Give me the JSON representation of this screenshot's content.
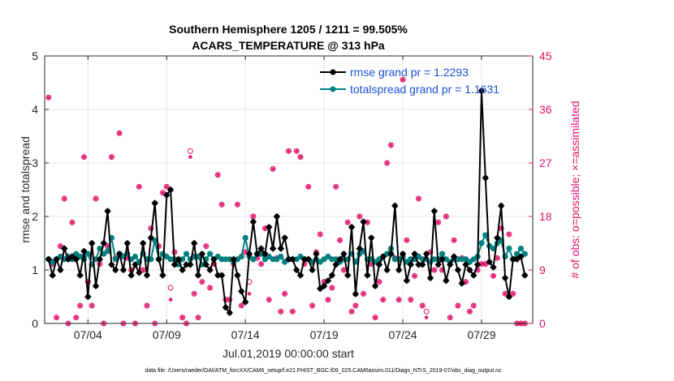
{
  "chart_data": {
    "type": "line",
    "title": "Southern Hemisphere 1205 / 1211 = 99.505%",
    "subtitle": "ACARS_TEMPERATURE @ 313 hPa",
    "xlabel": "Jul.01,2019 00:00:00 start",
    "ylabel_left": "rmse and totalspread",
    "ylabel_right": "# of obs: o=possible; ×=assimilated",
    "footer": "data file: /Users/raeder/DAI/ATM_forcXX/CAM6_setup/f.e21.FHIST_BGC.f09_025.CAM6assim.011/Diags_NTrS_2019-07/obs_diag_output.nc",
    "xlim": [
      1.25,
      32.25
    ],
    "ylim_left": [
      0,
      5
    ],
    "ylim_right": [
      0,
      45
    ],
    "grid": true,
    "legend_position": "top-right",
    "x_ticks": [
      4,
      9,
      14,
      19,
      24,
      29
    ],
    "x_tick_labels": [
      "07/04",
      "07/09",
      "07/14",
      "07/19",
      "07/24",
      "07/29"
    ],
    "y_ticks_left": [
      "0",
      "1",
      "2",
      "3",
      "4",
      "5"
    ],
    "y_ticks_right": [
      "0",
      "9",
      "18",
      "27",
      "36",
      "45"
    ],
    "colors": {
      "rmse": "#000000",
      "spread": "#008080",
      "obs": "#e0156b",
      "legend_text": "#1a4fd6",
      "grid": "#e6e6e6",
      "axis": "#262626"
    },
    "series": [
      {
        "name": "rmse grand pr = 1.2293",
        "axis": "left",
        "x": [
          1.5,
          1.75,
          2.0,
          2.25,
          2.5,
          2.75,
          3.0,
          3.25,
          3.5,
          3.75,
          4.0,
          4.25,
          4.5,
          4.75,
          5.0,
          5.25,
          5.5,
          5.75,
          6.0,
          6.25,
          6.5,
          6.75,
          7.0,
          7.25,
          7.5,
          7.75,
          8.0,
          8.25,
          8.5,
          8.75,
          9.0,
          9.25,
          9.5,
          9.75,
          10.0,
          10.25,
          10.5,
          10.75,
          11.0,
          11.25,
          11.5,
          11.75,
          12.0,
          12.25,
          12.5,
          12.75,
          13.0,
          13.25,
          13.5,
          13.75,
          14.0,
          14.25,
          14.5,
          14.75,
          15.0,
          15.25,
          15.5,
          15.75,
          16.0,
          16.25,
          16.5,
          16.75,
          17.0,
          17.25,
          17.5,
          17.75,
          18.0,
          18.25,
          18.5,
          18.75,
          19.0,
          19.25,
          19.5,
          19.75,
          20.0,
          20.25,
          20.5,
          20.75,
          21.0,
          21.25,
          21.5,
          21.75,
          22.0,
          22.25,
          22.5,
          22.75,
          23.0,
          23.25,
          23.5,
          23.75,
          24.0,
          24.25,
          24.5,
          24.75,
          25.0,
          25.25,
          25.5,
          25.75,
          26.0,
          26.25,
          26.5,
          26.75,
          27.0,
          27.25,
          27.5,
          27.75,
          28.0,
          28.25,
          28.5,
          28.75,
          29.0,
          29.25,
          29.5,
          29.75,
          30.0,
          30.25,
          30.5,
          30.75,
          31.0,
          31.25,
          31.5,
          31.75
        ],
        "values": [
          1.2,
          0.9,
          1.2,
          1.0,
          1.4,
          1.2,
          1.25,
          1.2,
          0.9,
          1.35,
          0.5,
          1.5,
          0.7,
          1.2,
          1.5,
          2.1,
          1.1,
          1.0,
          1.3,
          1.0,
          1.5,
          0.9,
          1.1,
          0.95,
          1.5,
          0.9,
          1.6,
          2.25,
          1.2,
          0.9,
          2.4,
          2.5,
          1.1,
          1.2,
          1.0,
          1.1,
          1.1,
          1.5,
          0.9,
          1.3,
          1.1,
          1.0,
          1.2,
          0.9,
          0.9,
          0.3,
          0.2,
          1.2,
          0.9,
          0.6,
          0.4,
          1.3,
          1.9,
          1.3,
          1.4,
          1.3,
          1.8,
          1.4,
          2.0,
          1.4,
          1.6,
          1.2,
          1.2,
          1.0,
          0.9,
          1.2,
          1.2,
          1.0,
          1.3,
          0.65,
          0.7,
          0.8,
          0.9,
          1.1,
          1.2,
          1.3,
          0.9,
          1.8,
          0.55,
          1.4,
          1.9,
          0.9,
          1.6,
          0.7,
          1.1,
          1.25,
          1.0,
          1.3,
          2.2,
          1.0,
          1.3,
          0.8,
          1.1,
          1.3,
          1.1,
          1.1,
          1.3,
          0.85,
          2.1,
          1.1,
          1.2,
          0.8,
          1.1,
          1.25,
          1.0,
          0.75,
          1.1,
          1.0,
          0.9,
          1.1,
          4.35,
          2.72,
          1.15,
          1.05,
          1.6,
          2.2,
          0.85,
          0.5,
          1.2,
          1.2,
          1.25,
          0.9
        ],
        "color": "#000000"
      },
      {
        "name": "totalspread grand pr = 1.1631",
        "axis": "left",
        "x": [
          1.5,
          1.75,
          2.0,
          2.25,
          2.5,
          2.75,
          3.0,
          3.25,
          3.5,
          3.75,
          4.0,
          4.25,
          4.5,
          4.75,
          5.0,
          5.25,
          5.5,
          5.75,
          6.0,
          6.25,
          6.5,
          6.75,
          7.0,
          7.25,
          7.5,
          7.75,
          8.0,
          8.25,
          8.5,
          8.75,
          9.0,
          9.25,
          9.5,
          9.75,
          10.0,
          10.25,
          10.5,
          10.75,
          11.0,
          11.25,
          11.5,
          11.75,
          12.0,
          12.25,
          12.5,
          12.75,
          13.0,
          13.25,
          13.5,
          13.75,
          14.0,
          14.25,
          14.5,
          14.75,
          15.0,
          15.25,
          15.5,
          15.75,
          16.0,
          16.25,
          16.5,
          16.75,
          17.0,
          17.25,
          17.5,
          17.75,
          18.0,
          18.25,
          18.5,
          18.75,
          19.0,
          19.25,
          19.5,
          19.75,
          20.0,
          20.25,
          20.5,
          20.75,
          21.0,
          21.25,
          21.5,
          21.75,
          22.0,
          22.25,
          22.5,
          22.75,
          23.0,
          23.25,
          23.5,
          23.75,
          24.0,
          24.25,
          24.5,
          24.75,
          25.0,
          25.25,
          25.5,
          25.75,
          26.0,
          26.25,
          26.5,
          26.75,
          27.0,
          27.25,
          27.5,
          27.75,
          28.0,
          28.25,
          28.5,
          28.75,
          29.0,
          29.25,
          29.5,
          29.75,
          30.0,
          30.25,
          30.5,
          30.75,
          31.0,
          31.25,
          31.5,
          31.75
        ],
        "values": [
          1.2,
          1.15,
          1.2,
          1.25,
          1.2,
          1.25,
          1.2,
          1.3,
          1.25,
          1.2,
          1.3,
          1.1,
          1.2,
          1.4,
          1.3,
          1.35,
          1.6,
          1.2,
          1.3,
          1.25,
          1.3,
          1.2,
          1.25,
          1.15,
          1.3,
          1.2,
          1.2,
          1.55,
          1.2,
          1.3,
          1.25,
          1.2,
          1.2,
          1.1,
          1.2,
          1.3,
          1.2,
          1.25,
          1.25,
          1.1,
          1.2,
          1.3,
          1.2,
          1.25,
          1.2,
          1.2,
          1.2,
          1.15,
          1.2,
          1.25,
          1.6,
          1.25,
          1.2,
          1.3,
          1.3,
          1.2,
          1.25,
          1.2,
          1.2,
          1.25,
          1.15,
          1.2,
          1.2,
          1.2,
          1.25,
          1.2,
          1.2,
          1.15,
          1.2,
          1.15,
          1.2,
          1.25,
          1.2,
          1.2,
          1.15,
          1.2,
          1.2,
          1.3,
          1.15,
          1.3,
          1.35,
          1.2,
          1.2,
          1.15,
          1.2,
          1.25,
          1.3,
          1.4,
          1.2,
          1.2,
          1.25,
          1.15,
          1.2,
          1.2,
          1.25,
          1.2,
          1.2,
          1.15,
          1.2,
          1.2,
          1.3,
          1.2,
          1.15,
          1.2,
          1.2,
          1.2,
          1.2,
          1.15,
          1.2,
          1.25,
          1.5,
          1.65,
          1.45,
          1.4,
          1.5,
          1.55,
          1.25,
          1.4,
          1.2,
          1.3,
          1.4,
          1.3
        ],
        "color": "#008080"
      }
    ],
    "obs_possible": {
      "axis": "right",
      "x": [
        1.5,
        1.75,
        2.0,
        2.25,
        2.5,
        2.75,
        3.0,
        3.25,
        3.5,
        3.75,
        4.0,
        4.25,
        4.5,
        4.75,
        5.0,
        5.25,
        5.5,
        5.75,
        6.0,
        6.25,
        6.5,
        6.75,
        7.0,
        7.25,
        7.5,
        7.75,
        8.0,
        8.25,
        8.5,
        8.75,
        9.0,
        9.25,
        9.5,
        9.75,
        10.0,
        10.25,
        10.5,
        10.75,
        11.0,
        11.25,
        11.5,
        11.75,
        12.0,
        12.25,
        12.5,
        12.75,
        13.0,
        13.25,
        13.5,
        13.75,
        14.0,
        14.25,
        14.5,
        14.75,
        15.0,
        15.25,
        15.5,
        15.75,
        16.0,
        16.25,
        16.5,
        16.75,
        17.0,
        17.25,
        17.5,
        17.75,
        18.0,
        18.25,
        18.5,
        18.75,
        19.0,
        19.25,
        19.5,
        19.75,
        20.0,
        20.25,
        20.5,
        20.75,
        21.0,
        21.25,
        21.5,
        21.75,
        22.0,
        22.25,
        22.5,
        22.75,
        23.0,
        23.25,
        23.5,
        23.75,
        24.0,
        24.25,
        24.5,
        24.75,
        25.0,
        25.25,
        25.5,
        25.75,
        26.0,
        26.25,
        26.5,
        26.75,
        27.0,
        27.25,
        27.5,
        27.75,
        28.0,
        28.25,
        28.5,
        28.75,
        29.0,
        29.25,
        29.5,
        29.75,
        30.0,
        30.25,
        30.5,
        30.75,
        31.0,
        31.25,
        31.5,
        31.75
      ],
      "values": [
        38,
        10,
        1,
        13,
        21,
        0,
        17,
        1,
        3,
        28,
        7,
        3,
        21,
        10,
        0,
        13,
        28,
        11,
        32,
        0,
        11,
        9,
        0,
        23,
        9,
        3,
        16,
        0,
        13,
        22,
        23,
        6,
        12,
        10,
        1,
        0,
        29,
        5,
        1,
        7,
        13,
        6,
        10,
        25,
        20,
        4,
        4,
        10,
        20,
        3,
        12,
        7,
        18,
        11,
        10,
        16,
        4,
        26,
        11,
        2,
        5,
        29,
        2,
        29,
        28,
        10,
        23,
        3,
        12,
        15,
        7,
        4,
        6,
        23,
        14,
        9,
        17,
        2,
        3,
        18,
        5,
        17,
        10,
        1,
        7,
        4,
        27,
        30,
        11,
        4,
        41,
        14,
        4,
        8,
        21,
        3,
        2,
        12,
        9,
        17,
        9,
        18,
        1,
        14,
        3,
        11,
        7,
        2,
        3,
        9,
        10,
        10,
        13,
        8,
        11,
        16,
        5,
        15,
        5,
        0,
        0,
        0
      ]
    },
    "obs_assimilated": {
      "axis": "right",
      "x": [
        1.5,
        1.75,
        2.0,
        2.25,
        2.5,
        2.75,
        3.0,
        3.25,
        3.5,
        3.75,
        4.0,
        4.25,
        4.5,
        4.75,
        5.0,
        5.25,
        5.5,
        5.75,
        6.0,
        6.25,
        6.5,
        6.75,
        7.0,
        7.25,
        7.5,
        7.75,
        8.0,
        8.25,
        8.5,
        8.75,
        9.0,
        9.25,
        9.5,
        9.75,
        10.0,
        10.25,
        10.5,
        10.75,
        11.0,
        11.25,
        11.5,
        11.75,
        12.0,
        12.25,
        12.5,
        12.75,
        13.0,
        13.25,
        13.5,
        13.75,
        14.0,
        14.25,
        14.5,
        14.75,
        15.0,
        15.25,
        15.5,
        15.75,
        16.0,
        16.25,
        16.5,
        16.75,
        17.0,
        17.25,
        17.5,
        17.75,
        18.0,
        18.25,
        18.5,
        18.75,
        19.0,
        19.25,
        19.5,
        19.75,
        20.0,
        20.25,
        20.5,
        20.75,
        21.0,
        21.25,
        21.5,
        21.75,
        22.0,
        22.25,
        22.5,
        22.75,
        23.0,
        23.25,
        23.5,
        23.75,
        24.0,
        24.25,
        24.5,
        24.75,
        25.0,
        25.25,
        25.5,
        25.75,
        26.0,
        26.25,
        26.5,
        26.75,
        27.0,
        27.25,
        27.5,
        27.75,
        28.0,
        28.25,
        28.5,
        28.75,
        29.0,
        29.25,
        29.5,
        29.75,
        30.0,
        30.25,
        30.5,
        30.75,
        31.0,
        31.25,
        31.5,
        31.75
      ],
      "values": [
        38,
        10,
        1,
        13,
        21,
        0,
        17,
        1,
        3,
        28,
        7,
        3,
        21,
        10,
        0,
        13,
        28,
        11,
        32,
        0,
        11,
        9,
        0,
        23,
        9,
        3,
        16,
        0,
        13,
        22,
        23,
        4,
        12,
        10,
        1,
        0,
        28,
        5,
        1,
        7,
        13,
        6,
        10,
        25,
        20,
        4,
        4,
        10,
        20,
        3,
        12,
        5,
        18,
        11,
        10,
        16,
        4,
        26,
        11,
        2,
        5,
        29,
        2,
        29,
        28,
        10,
        23,
        3,
        12,
        15,
        7,
        4,
        6,
        23,
        14,
        9,
        17,
        2,
        3,
        18,
        5,
        17,
        10,
        1,
        7,
        4,
        27,
        30,
        11,
        4,
        41,
        14,
        4,
        8,
        21,
        3,
        1,
        12,
        9,
        17,
        9,
        18,
        1,
        14,
        3,
        11,
        7,
        2,
        3,
        9,
        10,
        10,
        13,
        8,
        11,
        16,
        5,
        15,
        5,
        0,
        0,
        0
      ]
    }
  }
}
